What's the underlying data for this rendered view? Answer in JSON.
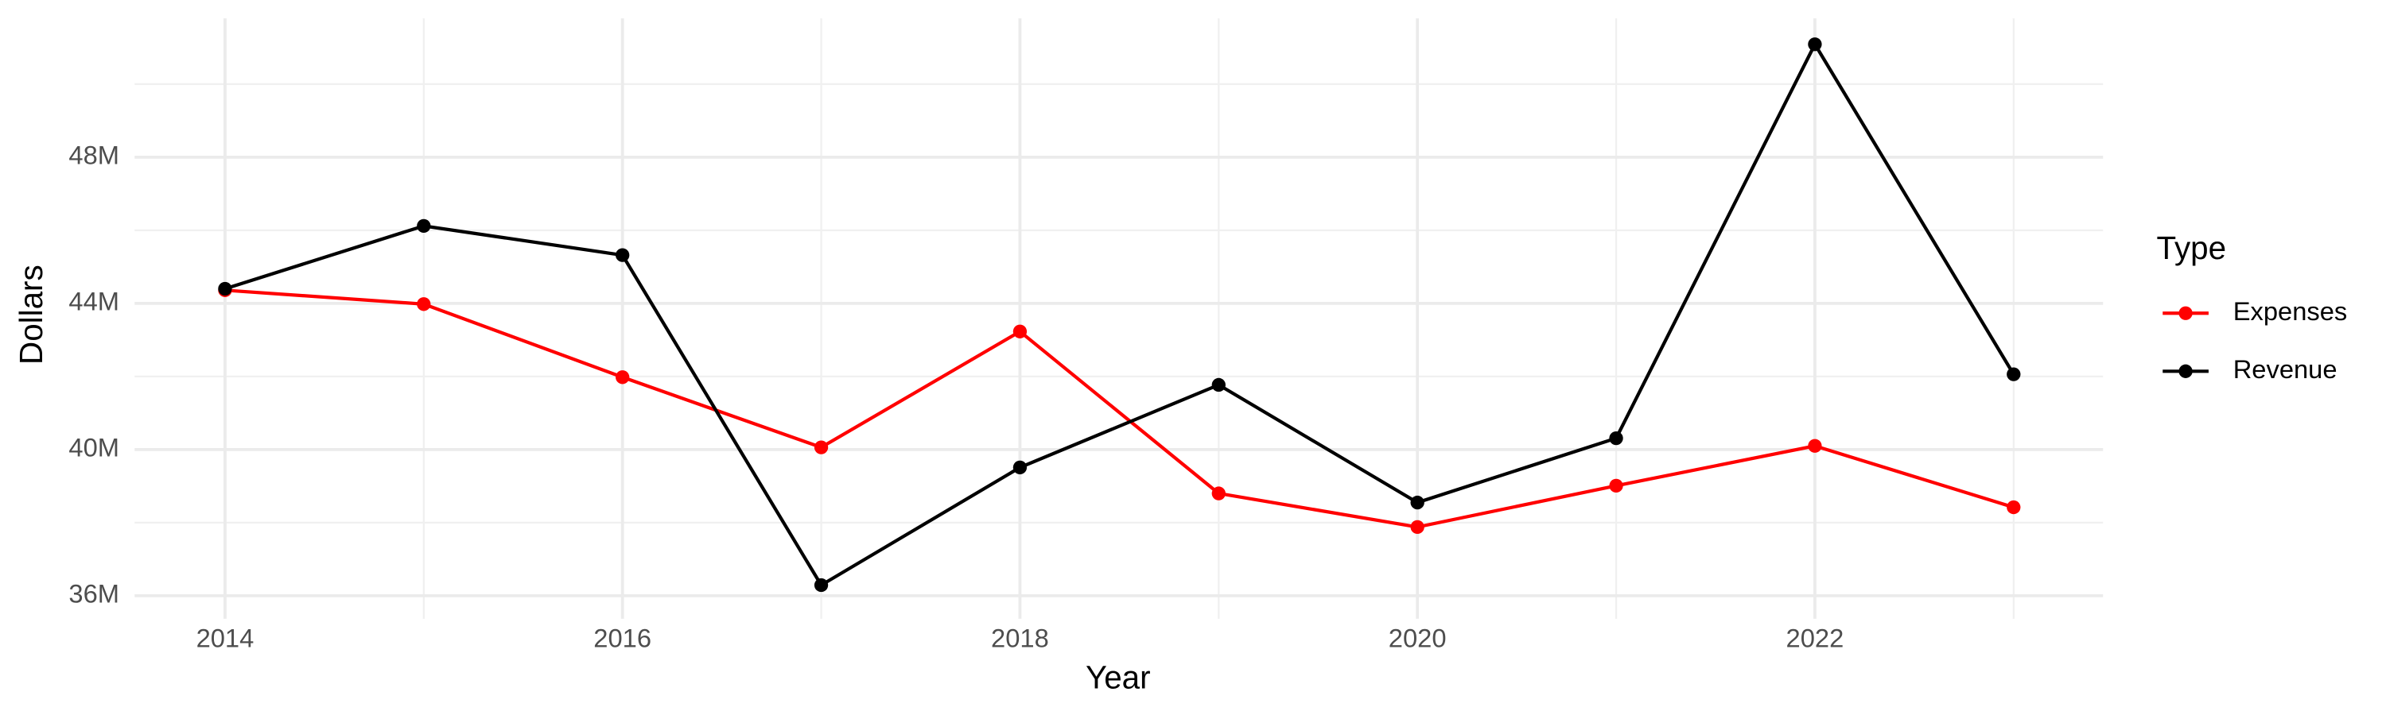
{
  "chart_data": {
    "type": "line",
    "x_label": "Year",
    "y_label": "Dollars",
    "legend_title": "Type",
    "x": [
      2014,
      2015,
      2016,
      2017,
      2018,
      2019,
      2020,
      2021,
      2022,
      2023
    ],
    "series": [
      {
        "name": "Expenses",
        "color": "#ff0000",
        "values": [
          44360000,
          43980000,
          41980000,
          40060000,
          43230000,
          38800000,
          37880000,
          39010000,
          40100000,
          38420000
        ]
      },
      {
        "name": "Revenue",
        "color": "#000000",
        "values": [
          44400000,
          46120000,
          45320000,
          36290000,
          39510000,
          41770000,
          38550000,
          40310000,
          51090000,
          42060000
        ]
      }
    ],
    "xlim": [
      2013.545,
      2023.45
    ],
    "xticks": [
      2014,
      2016,
      2018,
      2020,
      2022
    ],
    "ylim": [
      35370000,
      51800000
    ],
    "yticks": [
      {
        "value": 36000000,
        "label": "36M"
      },
      {
        "value": 40000000,
        "label": "40M"
      },
      {
        "value": 44000000,
        "label": "44M"
      },
      {
        "value": 48000000,
        "label": "48M"
      }
    ],
    "grid": true,
    "legend_position": "right"
  }
}
